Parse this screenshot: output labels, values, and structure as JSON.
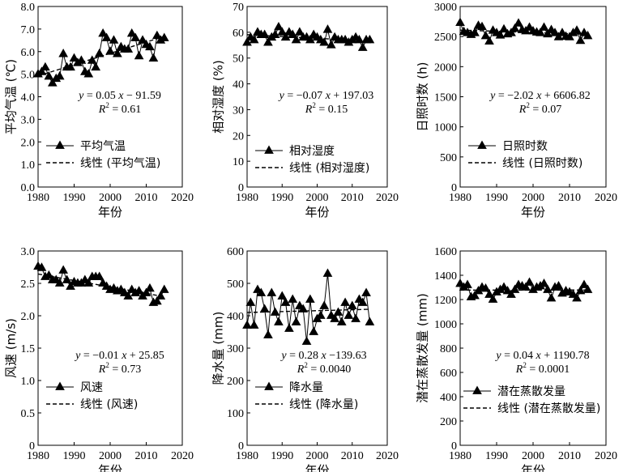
{
  "chart_data": [
    {
      "type": "line",
      "xlabel": "年份",
      "ylabel": "平均气温 (℃)",
      "xlim": [
        1980,
        2020
      ],
      "ylim": [
        0,
        8
      ],
      "xticks": [
        "1980",
        "1990",
        "2000",
        "2010",
        "2020"
      ],
      "yticks": [
        "0.0",
        "1.0",
        "2.0",
        "3.0",
        "4.0",
        "5.0",
        "6.0",
        "7.0",
        "8.0"
      ],
      "x": [
        1980,
        1981,
        1982,
        1983,
        1984,
        1985,
        1986,
        1987,
        1988,
        1989,
        1990,
        1991,
        1992,
        1993,
        1994,
        1995,
        1996,
        1997,
        1998,
        1999,
        2000,
        2001,
        2002,
        2003,
        2004,
        2005,
        2006,
        2007,
        2008,
        2009,
        2010,
        2011,
        2012,
        2013,
        2014,
        2015
      ],
      "series": [
        {
          "name": "平均气温",
          "values": [
            5.0,
            5.1,
            5.3,
            4.9,
            4.6,
            4.8,
            4.9,
            5.9,
            5.3,
            5.3,
            5.7,
            5.5,
            5.6,
            5.1,
            5.0,
            5.6,
            5.3,
            5.9,
            6.8,
            6.6,
            6.0,
            6.5,
            5.9,
            6.2,
            6.1,
            6.1,
            6.8,
            6.6,
            5.8,
            6.5,
            6.3,
            6.2,
            5.7,
            6.7,
            6.5,
            6.6
          ]
        },
        {
          "name": "线性 (平均气温)",
          "fit": {
            "slope": 0.05,
            "intercept": -91.59
          }
        }
      ],
      "equation_line1": {
        "y": "y",
        "eq": " = 0.05 ",
        "x": "x",
        "rest": " − 91.59"
      },
      "equation_line2": {
        "r": "R",
        "sup": "2",
        "value": " = 0.61"
      },
      "legend_placement": "lower-left"
    },
    {
      "type": "line",
      "xlabel": "年份",
      "ylabel": "相对湿度 (%)",
      "xlim": [
        1980,
        2020
      ],
      "ylim": [
        0,
        70
      ],
      "xticks": [
        "1980",
        "1990",
        "2000",
        "2010",
        "2020"
      ],
      "yticks": [
        "0",
        "10",
        "20",
        "30",
        "40",
        "50",
        "60",
        "70"
      ],
      "x": [
        1980,
        1981,
        1982,
        1983,
        1984,
        1985,
        1986,
        1987,
        1988,
        1989,
        1990,
        1991,
        1992,
        1993,
        1994,
        1995,
        1996,
        1997,
        1998,
        1999,
        2000,
        2001,
        2002,
        2003,
        2004,
        2005,
        2006,
        2007,
        2008,
        2009,
        2010,
        2011,
        2012,
        2013,
        2014,
        2015
      ],
      "series": [
        {
          "name": "相对湿度",
          "values": [
            56,
            58,
            57,
            60,
            59,
            59,
            56,
            58,
            59,
            62,
            60,
            58,
            60,
            59,
            57,
            60,
            58,
            58,
            57,
            59,
            58,
            57,
            56,
            61,
            55,
            58,
            57,
            57,
            57,
            56,
            57,
            58,
            57,
            54,
            57,
            57
          ]
        },
        {
          "name": "线性 (相对湿度)",
          "fit": {
            "slope": -0.07,
            "intercept": 197.03
          }
        }
      ],
      "equation_line1": {
        "y": "y",
        "eq": " = −0.07 ",
        "x": "x",
        "rest": " + 197.03"
      },
      "equation_line2": {
        "r": "R",
        "sup": "2",
        "value": " = 0.15"
      },
      "legend_placement": "lower-left"
    },
    {
      "type": "line",
      "xlabel": "年份",
      "ylabel": "日照时数 (h)",
      "xlim": [
        1980,
        2020
      ],
      "ylim": [
        0,
        3000
      ],
      "xticks": [
        "1980",
        "1990",
        "2000",
        "2010",
        "2020"
      ],
      "yticks": [
        "0",
        "500",
        "1000",
        "1500",
        "2000",
        "2500",
        "3000"
      ],
      "x": [
        1980,
        1981,
        1982,
        1983,
        1984,
        1985,
        1986,
        1987,
        1988,
        1989,
        1990,
        1991,
        1992,
        1993,
        1994,
        1995,
        1996,
        1997,
        1998,
        1999,
        2000,
        2001,
        2002,
        2003,
        2004,
        2005,
        2006,
        2007,
        2008,
        2009,
        2010,
        2011,
        2012,
        2013,
        2014,
        2015
      ],
      "series": [
        {
          "name": "日照时数",
          "values": [
            2730,
            2580,
            2560,
            2530,
            2560,
            2680,
            2660,
            2510,
            2420,
            2600,
            2560,
            2520,
            2620,
            2540,
            2560,
            2630,
            2720,
            2610,
            2590,
            2650,
            2590,
            2570,
            2560,
            2650,
            2540,
            2610,
            2560,
            2490,
            2560,
            2500,
            2490,
            2560,
            2600,
            2430,
            2560,
            2510
          ]
        },
        {
          "name": "线性 (日照时数)",
          "fit": {
            "slope": -2.02,
            "intercept": 6606.82
          }
        }
      ],
      "equation_line1": {
        "y": "y",
        "eq": " = −2.02 ",
        "x": "x",
        "rest": " + 6606.82"
      },
      "equation_line2": {
        "r": "R",
        "sup": "2",
        "value": " = 0.07"
      },
      "legend_placement": "lower-left"
    },
    {
      "type": "line",
      "xlabel": "年份",
      "ylabel": "风速 (m/s)",
      "xlim": [
        1980,
        2020
      ],
      "ylim": [
        0,
        3.0
      ],
      "xticks": [
        "1980",
        "1990",
        "2000",
        "2010",
        "2020"
      ],
      "yticks": [
        "0",
        "0.5",
        "1.0",
        "1.5",
        "2.0",
        "2.5",
        "3.0"
      ],
      "x": [
        1980,
        1981,
        1982,
        1983,
        1984,
        1985,
        1986,
        1987,
        1988,
        1989,
        1990,
        1991,
        1992,
        1993,
        1994,
        1995,
        1996,
        1997,
        1998,
        1999,
        2000,
        2001,
        2002,
        2003,
        2004,
        2005,
        2006,
        2007,
        2008,
        2009,
        2010,
        2011,
        2012,
        2013,
        2014,
        2015
      ],
      "series": [
        {
          "name": "风速",
          "values": [
            2.76,
            2.74,
            2.6,
            2.62,
            2.55,
            2.55,
            2.5,
            2.7,
            2.55,
            2.45,
            2.52,
            2.5,
            2.5,
            2.55,
            2.5,
            2.6,
            2.6,
            2.6,
            2.5,
            2.45,
            2.4,
            2.42,
            2.38,
            2.4,
            2.35,
            2.3,
            2.4,
            2.35,
            2.38,
            2.3,
            2.35,
            2.42,
            2.2,
            2.22,
            2.3,
            2.4
          ]
        },
        {
          "name": "风速",
          "fit": {
            "slope": -0.01,
            "intercept": 25.85
          }
        }
      ],
      "equation_line1": {
        "y": "y",
        "eq": " = −0.01 ",
        "x": "x",
        "rest": " + 25.85"
      },
      "equation_line2": {
        "r": "R",
        "sup": "2",
        "value": " = 0.73"
      },
      "legend_labels": [
        "风速",
        "线性 (风速)"
      ],
      "legend_placement": "lower-left"
    },
    {
      "type": "line",
      "xlabel": "年份",
      "ylabel": "降水量 (mm)",
      "xlim": [
        1980,
        2020
      ],
      "ylim": [
        0,
        600
      ],
      "xticks": [
        "1980",
        "1990",
        "2000",
        "2010",
        "2020"
      ],
      "yticks": [
        "0",
        "100",
        "200",
        "300",
        "400",
        "500",
        "600"
      ],
      "x": [
        1980,
        1981,
        1982,
        1983,
        1984,
        1985,
        1986,
        1987,
        1988,
        1989,
        1990,
        1991,
        1992,
        1993,
        1994,
        1995,
        1996,
        1997,
        1998,
        1999,
        2000,
        2001,
        2002,
        2003,
        2004,
        2005,
        2006,
        2007,
        2008,
        2009,
        2010,
        2011,
        2012,
        2013,
        2014,
        2015
      ],
      "series": [
        {
          "name": "降水量",
          "values": [
            370,
            440,
            370,
            480,
            470,
            420,
            340,
            470,
            410,
            380,
            460,
            440,
            360,
            450,
            380,
            430,
            420,
            320,
            450,
            350,
            390,
            400,
            430,
            530,
            400,
            390,
            410,
            380,
            440,
            400,
            430,
            390,
            450,
            440,
            470,
            380
          ]
        },
        {
          "name": "线性 (降水量)",
          "fit": {
            "slope": 0.28,
            "intercept": -139.63
          }
        }
      ],
      "equation_line1": {
        "y": "y",
        "eq": " = 0.28 ",
        "x": "x",
        "rest": " −139.63"
      },
      "equation_line2": {
        "r": "R",
        "sup": "2",
        "value": " = 0.0040"
      },
      "legend_placement": "lower-left"
    },
    {
      "type": "line",
      "xlabel": "年份",
      "ylabel": "潜在蒸散发量 (mm)",
      "xlim": [
        1980,
        2020
      ],
      "ylim": [
        0,
        1600
      ],
      "xticks": [
        "1980",
        "1990",
        "2000",
        "2010",
        "2020"
      ],
      "yticks": [
        "0",
        "200",
        "400",
        "600",
        "800",
        "1000",
        "1200",
        "1400",
        "1600"
      ],
      "x": [
        1980,
        1981,
        1982,
        1983,
        1984,
        1985,
        1986,
        1987,
        1988,
        1989,
        1990,
        1991,
        1992,
        1993,
        1994,
        1995,
        1996,
        1997,
        1998,
        1999,
        2000,
        2001,
        2002,
        2003,
        2004,
        2005,
        2006,
        2007,
        2008,
        2009,
        2010,
        2011,
        2012,
        2013,
        2014,
        2015
      ],
      "series": [
        {
          "name": "潜在蒸散发量",
          "values": [
            1330,
            1300,
            1320,
            1220,
            1230,
            1270,
            1300,
            1290,
            1240,
            1200,
            1260,
            1280,
            1300,
            1270,
            1240,
            1280,
            1320,
            1310,
            1300,
            1340,
            1280,
            1300,
            1310,
            1330,
            1280,
            1210,
            1300,
            1310,
            1250,
            1270,
            1260,
            1240,
            1210,
            1270,
            1320,
            1280
          ]
        },
        {
          "name": "线性 (潜在蒸散发量)",
          "fit": {
            "slope": 0.04,
            "intercept": 1190.78
          }
        }
      ],
      "equation_line1": {
        "y": "y",
        "eq": " = 0.04 ",
        "x": "x",
        "rest": " + 1190.78"
      },
      "equation_line2": {
        "r": "R",
        "sup": "2",
        "value": " = 0.0001"
      },
      "legend_placement": "lower-left"
    }
  ]
}
